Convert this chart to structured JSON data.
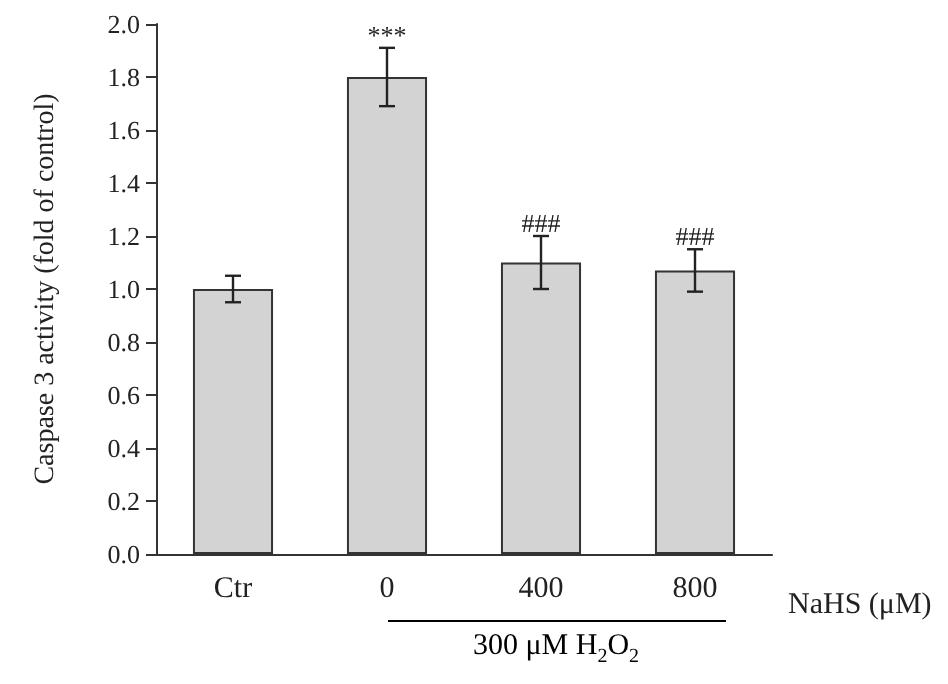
{
  "chart_data": {
    "type": "bar",
    "ylabel": "Caspase 3 activity (fold of control)",
    "xlabel": "NaHS (μM)",
    "categories": [
      "Ctr",
      "0",
      "400",
      "800"
    ],
    "values": [
      1.0,
      1.8,
      1.1,
      1.07
    ],
    "errors": [
      0.05,
      0.11,
      0.1,
      0.08
    ],
    "color": "#d3d3d3",
    "ylim": [
      0,
      2.0
    ],
    "yticks": [
      {
        "value": 0,
        "label": "0.0"
      },
      {
        "value": 0.2,
        "label": "0.2"
      },
      {
        "value": 0.4,
        "label": "0.4"
      },
      {
        "value": 0.6,
        "label": "0.6"
      },
      {
        "value": 0.8,
        "label": "0.8"
      },
      {
        "value": 1.0,
        "label": "1.0"
      },
      {
        "value": 1.2,
        "label": "1.2"
      },
      {
        "value": 1.4,
        "label": "1.4"
      },
      {
        "value": 1.6,
        "label": "1.6"
      },
      {
        "value": 1.8,
        "label": "1.8"
      },
      {
        "value": 2.0,
        "label": "2.0"
      }
    ],
    "annotations": [
      {
        "text": "***",
        "x": "0",
        "y": 1.91
      },
      {
        "text": "###",
        "x": "400",
        "y": 1.2
      },
      {
        "text": "###",
        "x": "800",
        "y": 1.15
      },
      "300 μM H$_{2}$O$_{2}$"
    ],
    "grid": false
  }
}
